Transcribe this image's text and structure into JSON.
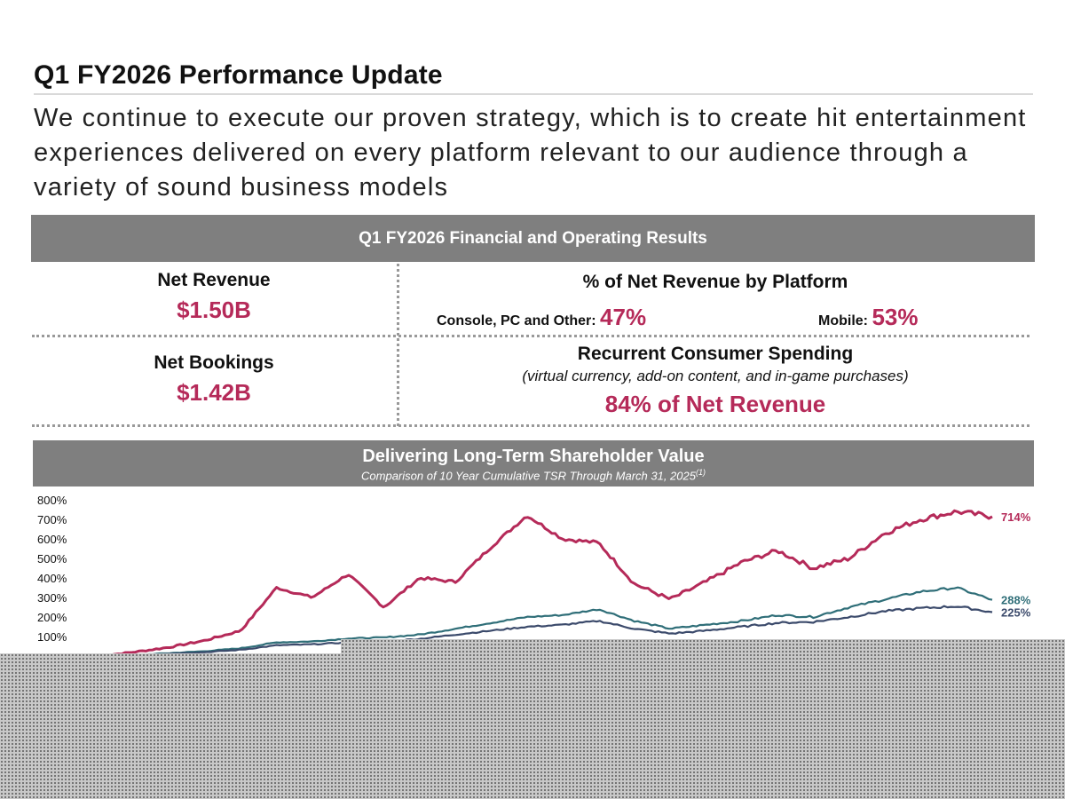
{
  "header": {
    "title": "Q1 FY2026 Performance Update",
    "subtitle": "We continue to execute our proven strategy, which is to create hit entertainment experiences delivered on every platform relevant to our audience through a variety of sound business models"
  },
  "results": {
    "banner": "Q1 FY2026 Financial and Operating Results",
    "net_revenue_label": "Net Revenue",
    "net_revenue_value": "$1.50B",
    "net_bookings_label": "Net Bookings",
    "net_bookings_value": "$1.42B",
    "platform_title": "% of Net Revenue by Platform",
    "console_label": "Console, PC and Other:",
    "console_value": "47%",
    "mobile_label": "Mobile:",
    "mobile_value": "53%",
    "recurrent_title": "Recurrent Consumer Spending",
    "recurrent_note": "(virtual currency, add-on content, and in-game purchases)",
    "recurrent_value": "84% of Net Revenue"
  },
  "tsr": {
    "banner_title": "Delivering Long-Term Shareholder Value",
    "banner_subtitle": "Comparison of 10 Year Cumulative TSR Through March 31, 2025",
    "banner_footnote": "(1)"
  },
  "colors": {
    "accent": "#b52a59",
    "series2": "#2f6e78",
    "series3": "#3b4a6b",
    "banner": "#7f7f7f"
  },
  "chart_data": {
    "type": "line",
    "title": "Delivering Long-Term Shareholder Value",
    "subtitle": "Comparison of 10 Year Cumulative TSR Through March 31, 2025",
    "ylim": [
      0,
      800
    ],
    "yticks": [
      "800%",
      "700%",
      "600%",
      "500%",
      "400%",
      "300%",
      "200%",
      "100%"
    ],
    "x": [
      0,
      0.04,
      0.08,
      0.12,
      0.16,
      0.2,
      0.24,
      0.28,
      0.32,
      0.36,
      0.4,
      0.44,
      0.48,
      0.52,
      0.56,
      0.6,
      0.64,
      0.68,
      0.72,
      0.76,
      0.8,
      0.84,
      0.88,
      0.92,
      0.96,
      1.0
    ],
    "series": [
      {
        "values": [
          0,
          20,
          45,
          80,
          130,
          350,
          300,
          420,
          250,
          400,
          380,
          560,
          720,
          600,
          580,
          370,
          290,
          380,
          480,
          540,
          450,
          500,
          630,
          700,
          740,
          714
        ],
        "end_label": "714%"
      },
      {
        "values": [
          0,
          5,
          15,
          25,
          40,
          70,
          75,
          90,
          95,
          110,
          140,
          170,
          200,
          210,
          240,
          180,
          140,
          160,
          180,
          210,
          200,
          250,
          290,
          330,
          350,
          288
        ],
        "end_label": "288%"
      },
      {
        "values": [
          0,
          4,
          12,
          20,
          32,
          55,
          60,
          70,
          75,
          88,
          110,
          130,
          150,
          160,
          180,
          140,
          115,
          130,
          150,
          170,
          175,
          200,
          230,
          245,
          255,
          225
        ],
        "end_label": "225%"
      }
    ],
    "grid": false,
    "legend": "none"
  }
}
